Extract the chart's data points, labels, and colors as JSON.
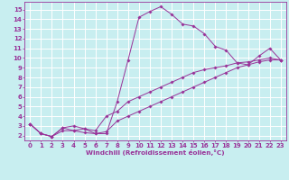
{
  "xlabel": "Windchill (Refroidissement éolien,°C)",
  "xlim": [
    -0.5,
    23.5
  ],
  "ylim": [
    1.5,
    15.8
  ],
  "xticks": [
    0,
    1,
    2,
    3,
    4,
    5,
    6,
    7,
    8,
    9,
    10,
    11,
    12,
    13,
    14,
    15,
    16,
    17,
    18,
    19,
    20,
    21,
    22,
    23
  ],
  "yticks": [
    2,
    3,
    4,
    5,
    6,
    7,
    8,
    9,
    10,
    11,
    12,
    13,
    14,
    15
  ],
  "line_color": "#993399",
  "bg_color": "#c8eef0",
  "grid_color": "#ffffff",
  "line1_x": [
    0,
    1,
    2,
    3,
    4,
    5,
    6,
    7,
    8,
    9,
    10,
    11,
    12,
    13,
    14,
    15,
    16,
    17,
    18,
    19,
    20,
    21,
    22,
    23
  ],
  "line1_y": [
    3.2,
    2.2,
    1.9,
    2.8,
    2.5,
    2.7,
    2.2,
    2.2,
    5.5,
    9.8,
    14.2,
    14.8,
    15.3,
    14.5,
    13.5,
    13.3,
    12.5,
    11.2,
    10.8,
    9.5,
    9.3,
    10.2,
    11.0,
    9.8
  ],
  "line2_x": [
    0,
    1,
    2,
    3,
    4,
    5,
    6,
    7,
    8,
    9,
    10,
    11,
    12,
    13,
    14,
    15,
    16,
    17,
    18,
    19,
    20,
    21,
    22,
    23
  ],
  "line2_y": [
    3.2,
    2.2,
    1.9,
    2.8,
    3.0,
    2.7,
    2.5,
    4.0,
    4.5,
    5.5,
    6.0,
    6.5,
    7.0,
    7.5,
    8.0,
    8.5,
    8.8,
    9.0,
    9.2,
    9.5,
    9.6,
    9.8,
    10.0,
    9.8
  ],
  "line3_x": [
    0,
    1,
    2,
    3,
    4,
    5,
    6,
    7,
    8,
    9,
    10,
    11,
    12,
    13,
    14,
    15,
    16,
    17,
    18,
    19,
    20,
    21,
    22,
    23
  ],
  "line3_y": [
    3.2,
    2.2,
    1.9,
    2.5,
    2.5,
    2.3,
    2.2,
    2.4,
    3.5,
    4.0,
    4.5,
    5.0,
    5.5,
    6.0,
    6.5,
    7.0,
    7.5,
    8.0,
    8.5,
    9.0,
    9.3,
    9.6,
    9.8,
    9.8
  ],
  "tick_fontsize": 5.0,
  "xlabel_fontsize": 5.2,
  "spine_color": "#993399"
}
